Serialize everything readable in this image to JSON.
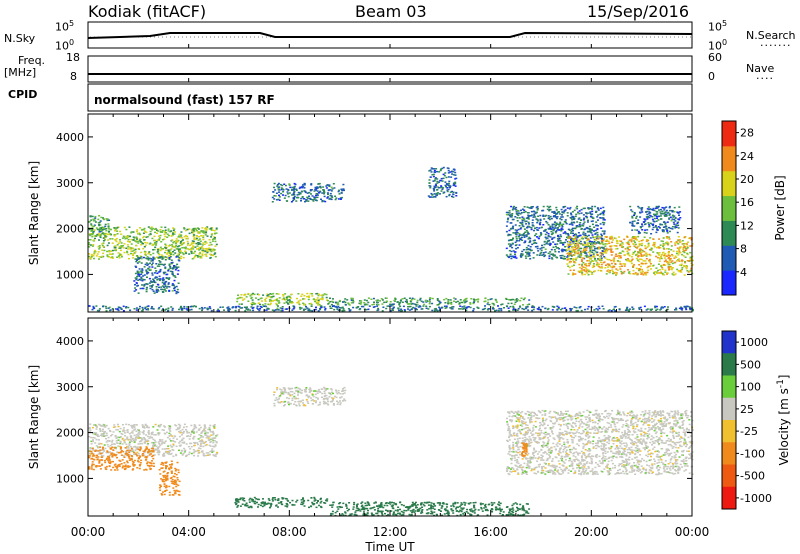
{
  "header": {
    "station": "Kodiak (fitACF)",
    "beam": "Beam 03",
    "date": "15/Sep/2016"
  },
  "panels": {
    "nsky": {
      "label": "N.Sky",
      "y_top": "10^5",
      "y_bottom": "10^0"
    },
    "nsearch": {
      "label": "N.Search",
      "y_top": "10^5",
      "y_bottom": "10^0"
    },
    "freq": {
      "label_line1": "Freq.",
      "label_line2": "[MHz]",
      "y_top": "18",
      "y_bottom": "8"
    },
    "nave": {
      "label": "Nave",
      "y_top": "60",
      "y_bottom": "0"
    },
    "cpid": {
      "label": "CPID",
      "text": "normalsound (fast) 157 RF"
    }
  },
  "chart_data": [
    {
      "type": "heatmap",
      "name": "power",
      "xlabel": "",
      "ylabel": "Slant Range [km]",
      "xlim": [
        0,
        24
      ],
      "ylim": [
        180,
        4500
      ],
      "y_ticks": [
        "1000",
        "2000",
        "3000",
        "4000"
      ],
      "colorbar_label": "Power [dB]",
      "colorbar_ticks": [
        "4",
        "8",
        "12",
        "16",
        "20",
        "24",
        "28"
      ],
      "colorbar_range": [
        0,
        30
      ],
      "colorbar_colors": [
        "#1a28ff",
        "#1f5ab4",
        "#2e8a55",
        "#6cbf3c",
        "#d9d21a",
        "#f08a1c",
        "#ee2a12"
      ],
      "regions": [
        {
          "x0": 0.0,
          "x1": 5.1,
          "y0": 1350,
          "y1": 2050,
          "level": 16
        },
        {
          "x0": 0.0,
          "x1": 0.8,
          "y0": 1800,
          "y1": 2300,
          "level": 12
        },
        {
          "x0": 1.8,
          "x1": 3.6,
          "y0": 600,
          "y1": 1400,
          "level": 8
        },
        {
          "x0": 5.8,
          "x1": 9.5,
          "y0": 350,
          "y1": 600,
          "level": 16
        },
        {
          "x0": 9.5,
          "x1": 17.5,
          "y0": 350,
          "y1": 500,
          "level": 12
        },
        {
          "x0": 0.0,
          "x1": 24.0,
          "y0": 220,
          "y1": 330,
          "level": 8
        },
        {
          "x0": 7.3,
          "x1": 10.2,
          "y0": 2600,
          "y1": 3000,
          "level": 8
        },
        {
          "x0": 13.5,
          "x1": 14.6,
          "y0": 2700,
          "y1": 3350,
          "level": 8
        },
        {
          "x0": 16.6,
          "x1": 20.5,
          "y0": 1350,
          "y1": 2500,
          "level": 8
        },
        {
          "x0": 19.0,
          "x1": 24.0,
          "y0": 1000,
          "y1": 1850,
          "level": 20
        },
        {
          "x0": 21.5,
          "x1": 23.5,
          "y0": 1900,
          "y1": 2500,
          "level": 8
        }
      ]
    },
    {
      "type": "heatmap",
      "name": "velocity",
      "xlabel": "Time UT",
      "ylabel": "Slant Range [km]",
      "xlim": [
        0,
        24
      ],
      "ylim": [
        180,
        4500
      ],
      "x_ticks": [
        "00:00",
        "04:00",
        "08:00",
        "12:00",
        "16:00",
        "20:00",
        "00:00"
      ],
      "y_ticks": [
        "1000",
        "2000",
        "3000",
        "4000"
      ],
      "colorbar_label": "Velocity [m s^-1]",
      "colorbar_ticks": [
        "1000",
        "500",
        "100",
        "25",
        "-25",
        "-100",
        "-500",
        "-1000"
      ],
      "colorbar_colors": [
        "#2233cc",
        "#2a7a4a",
        "#6acd3a",
        "#c8c8c0",
        "#f0c030",
        "#f08a1c",
        "#ee5a12",
        "#ee1a12"
      ],
      "regions": [
        {
          "x0": 0.0,
          "x1": 5.1,
          "y0": 1500,
          "y1": 2200,
          "v": 0
        },
        {
          "x0": 0.0,
          "x1": 2.6,
          "y0": 1200,
          "y1": 1700,
          "v": -300
        },
        {
          "x0": 2.8,
          "x1": 3.6,
          "y0": 650,
          "y1": 1400,
          "v": -300
        },
        {
          "x0": 5.8,
          "x1": 9.5,
          "y0": 380,
          "y1": 600,
          "v": 150
        },
        {
          "x0": 9.5,
          "x1": 17.5,
          "y0": 200,
          "y1": 500,
          "v": 150
        },
        {
          "x0": 7.3,
          "x1": 10.2,
          "y0": 2600,
          "y1": 3000,
          "v": 0
        },
        {
          "x0": 16.6,
          "x1": 24.0,
          "y0": 1100,
          "y1": 2500,
          "v": 0
        },
        {
          "x0": 17.2,
          "x1": 17.4,
          "y0": 1500,
          "y1": 1800,
          "v": -300
        }
      ]
    }
  ]
}
